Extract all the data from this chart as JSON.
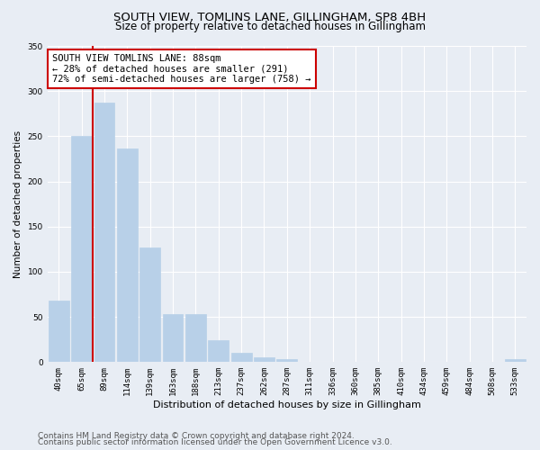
{
  "title": "SOUTH VIEW, TOMLINS LANE, GILLINGHAM, SP8 4BH",
  "subtitle": "Size of property relative to detached houses in Gillingham",
  "xlabel": "Distribution of detached houses by size in Gillingham",
  "ylabel": "Number of detached properties",
  "categories": [
    "40sqm",
    "65sqm",
    "89sqm",
    "114sqm",
    "139sqm",
    "163sqm",
    "188sqm",
    "213sqm",
    "237sqm",
    "262sqm",
    "287sqm",
    "311sqm",
    "336sqm",
    "360sqm",
    "385sqm",
    "410sqm",
    "434sqm",
    "459sqm",
    "484sqm",
    "508sqm",
    "533sqm"
  ],
  "values": [
    68,
    250,
    287,
    236,
    127,
    53,
    53,
    24,
    10,
    5,
    3,
    0,
    0,
    0,
    0,
    0,
    0,
    0,
    0,
    0,
    3
  ],
  "bar_color": "#b8d0e8",
  "bar_edgecolor": "#b8d0e8",
  "vline_color": "#cc0000",
  "annotation_text": "SOUTH VIEW TOMLINS LANE: 88sqm\n← 28% of detached houses are smaller (291)\n72% of semi-detached houses are larger (758) →",
  "annotation_box_color": "#ffffff",
  "annotation_box_edgecolor": "#cc0000",
  "ylim": [
    0,
    350
  ],
  "yticks": [
    0,
    50,
    100,
    150,
    200,
    250,
    300,
    350
  ],
  "background_color": "#e8edf4",
  "plot_background_color": "#e8edf4",
  "footer_line1": "Contains HM Land Registry data © Crown copyright and database right 2024.",
  "footer_line2": "Contains public sector information licensed under the Open Government Licence v3.0.",
  "title_fontsize": 9.5,
  "subtitle_fontsize": 8.5,
  "xlabel_fontsize": 8,
  "ylabel_fontsize": 7.5,
  "tick_fontsize": 6.5,
  "annotation_fontsize": 7.5,
  "footer_fontsize": 6.5
}
